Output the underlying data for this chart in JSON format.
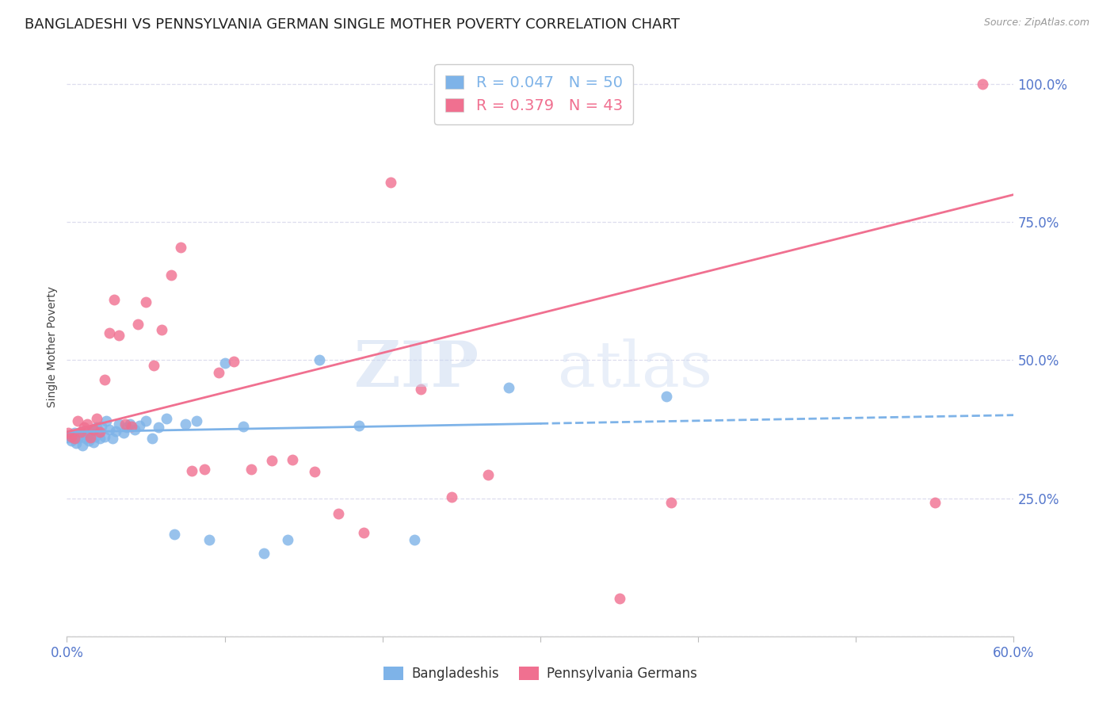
{
  "title": "BANGLADESHI VS PENNSYLVANIA GERMAN SINGLE MOTHER POVERTY CORRELATION CHART",
  "source": "Source: ZipAtlas.com",
  "ylabel": "Single Mother Poverty",
  "yticks": [
    0.0,
    0.25,
    0.5,
    0.75,
    1.0
  ],
  "ytick_labels": [
    "",
    "25.0%",
    "50.0%",
    "75.0%",
    "100.0%"
  ],
  "xlim": [
    0.0,
    0.6
  ],
  "ylim": [
    0.0,
    1.05
  ],
  "bangladeshi_R": 0.047,
  "bangladeshi_N": 50,
  "penn_german_R": 0.379,
  "penn_german_N": 43,
  "bangladeshi_color": "#7EB3E8",
  "penn_german_color": "#F07090",
  "watermark_zip": "ZIP",
  "watermark_atlas": "atlas",
  "bangladeshi_points_x": [
    0.001,
    0.002,
    0.003,
    0.004,
    0.005,
    0.006,
    0.007,
    0.008,
    0.009,
    0.01,
    0.011,
    0.012,
    0.013,
    0.014,
    0.015,
    0.016,
    0.017,
    0.018,
    0.019,
    0.02,
    0.021,
    0.022,
    0.024,
    0.025,
    0.027,
    0.029,
    0.031,
    0.033,
    0.036,
    0.038,
    0.04,
    0.043,
    0.046,
    0.05,
    0.054,
    0.058,
    0.063,
    0.068,
    0.075,
    0.082,
    0.09,
    0.1,
    0.112,
    0.125,
    0.14,
    0.16,
    0.185,
    0.22,
    0.28,
    0.38
  ],
  "bangladeshi_points_y": [
    0.36,
    0.365,
    0.355,
    0.362,
    0.368,
    0.35,
    0.358,
    0.363,
    0.37,
    0.345,
    0.372,
    0.358,
    0.365,
    0.355,
    0.368,
    0.375,
    0.352,
    0.362,
    0.378,
    0.37,
    0.358,
    0.38,
    0.362,
    0.39,
    0.375,
    0.358,
    0.372,
    0.385,
    0.368,
    0.378,
    0.385,
    0.375,
    0.382,
    0.39,
    0.358,
    0.378,
    0.395,
    0.185,
    0.385,
    0.39,
    0.175,
    0.495,
    0.38,
    0.15,
    0.175,
    0.5,
    0.382,
    0.175,
    0.45,
    0.435
  ],
  "penn_german_points_x": [
    0.001,
    0.003,
    0.005,
    0.007,
    0.009,
    0.011,
    0.013,
    0.015,
    0.017,
    0.019,
    0.021,
    0.024,
    0.027,
    0.03,
    0.033,
    0.037,
    0.041,
    0.045,
    0.05,
    0.055,
    0.06,
    0.066,
    0.072,
    0.079,
    0.087,
    0.096,
    0.106,
    0.117,
    0.13,
    0.143,
    0.157,
    0.172,
    0.188,
    0.205,
    0.224,
    0.244,
    0.267,
    0.292,
    0.32,
    0.35,
    0.383,
    0.55,
    0.58
  ],
  "penn_german_points_y": [
    0.368,
    0.362,
    0.358,
    0.39,
    0.37,
    0.378,
    0.385,
    0.36,
    0.375,
    0.395,
    0.37,
    0.465,
    0.55,
    0.61,
    0.545,
    0.385,
    0.38,
    0.565,
    0.605,
    0.49,
    0.555,
    0.655,
    0.705,
    0.3,
    0.302,
    0.478,
    0.498,
    0.302,
    0.318,
    0.32,
    0.298,
    0.222,
    0.188,
    0.822,
    0.448,
    0.252,
    0.292,
    1.0,
    1.0,
    0.068,
    0.242,
    0.242,
    1.0
  ],
  "bang_line_x": [
    0.0,
    0.45
  ],
  "bang_line_y": [
    0.37,
    0.393
  ],
  "penn_line_x": [
    0.0,
    0.6
  ],
  "penn_line_y": [
    0.37,
    0.8
  ],
  "background_color": "#ffffff",
  "grid_color": "#ddddee",
  "tick_color": "#5577cc",
  "title_fontsize": 13,
  "axis_label_fontsize": 10,
  "tick_fontsize": 12
}
